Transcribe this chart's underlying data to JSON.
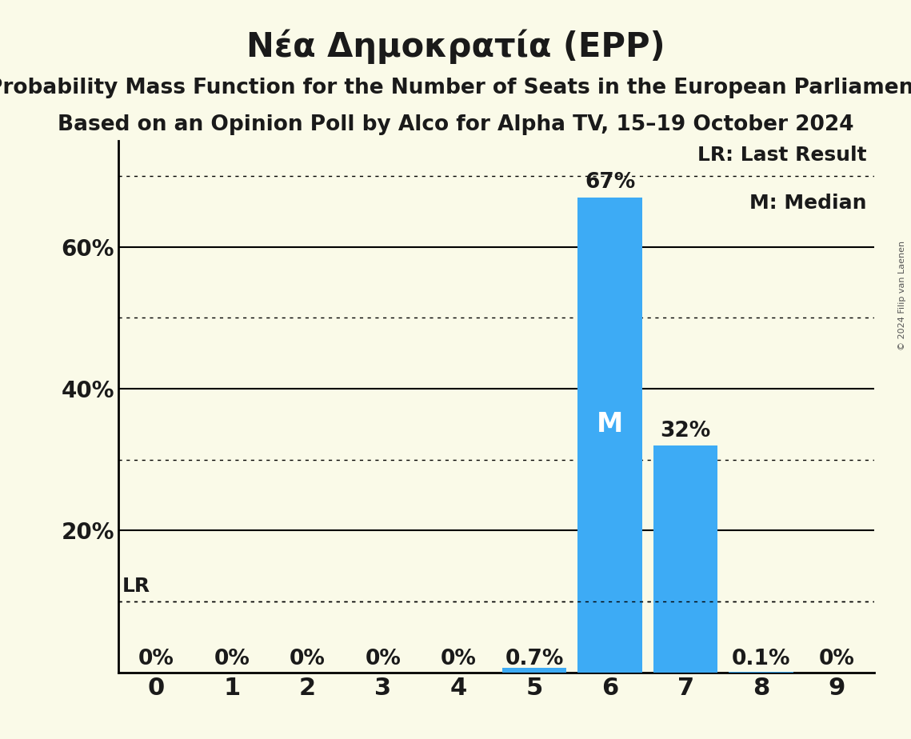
{
  "title": "Νέα Δημοκρατία (EPP)",
  "subtitle1": "Probability Mass Function for the Number of Seats in the European Parliament",
  "subtitle2": "Based on an Opinion Poll by Alco for Alpha TV, 15–19 October 2024",
  "copyright": "© 2024 Filip van Laenen",
  "categories": [
    0,
    1,
    2,
    3,
    4,
    5,
    6,
    7,
    8,
    9
  ],
  "values": [
    0.0,
    0.0,
    0.0,
    0.0,
    0.0,
    0.007,
    0.67,
    0.32,
    0.001,
    0.0
  ],
  "bar_color": "#3dabf5",
  "background_color": "#fafae8",
  "median_bar": 6,
  "last_result_value": 0.1,
  "ylim": [
    0,
    0.75
  ],
  "solid_yticks": [
    0.2,
    0.4,
    0.6
  ],
  "dotted_yticks": [
    0.1,
    0.3,
    0.5,
    0.7
  ],
  "ytick_labels": [
    0.2,
    0.4,
    0.6
  ],
  "ytick_label_strs": [
    "20%",
    "40%",
    "60%"
  ],
  "bar_labels": [
    "0%",
    "0%",
    "0%",
    "0%",
    "0%",
    "0.7%",
    "67%",
    "32%",
    "0.1%",
    "0%"
  ],
  "legend_lr": "LR: Last Result",
  "legend_m": "M: Median",
  "title_fontsize": 30,
  "subtitle_fontsize": 19,
  "label_fontsize": 18,
  "tick_fontsize": 20,
  "text_color": "#1a1a1a"
}
